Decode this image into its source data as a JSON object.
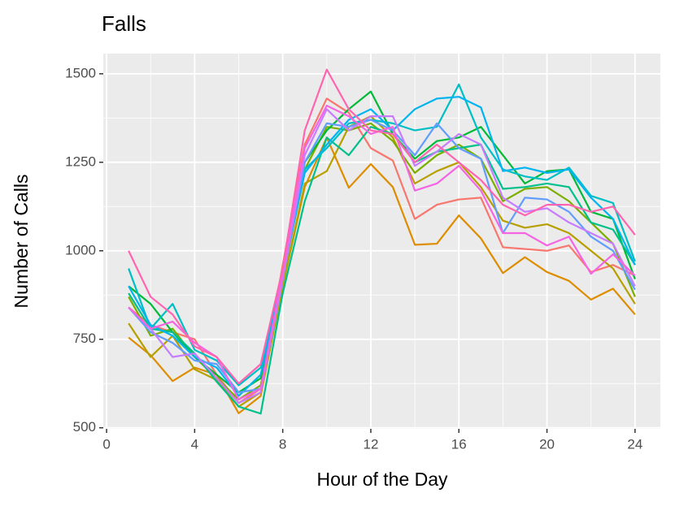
{
  "chart_data": {
    "type": "line",
    "title": "Falls",
    "x_label": "Hour of the Day",
    "y_label": "Number of Calls",
    "x": [
      1,
      2,
      3,
      4,
      5,
      6,
      7,
      8,
      9,
      10,
      11,
      12,
      13,
      14,
      15,
      16,
      17,
      18,
      19,
      20,
      21,
      22,
      23,
      24
    ],
    "xlim": [
      -0.15,
      25.15
    ],
    "xticks": [
      0,
      4,
      8,
      12,
      16,
      20,
      24
    ],
    "ylim": [
      497,
      1557
    ],
    "yticks": [
      500,
      750,
      1000,
      1250,
      1500
    ],
    "grid": true,
    "series": [
      {
        "color": "#F8766D",
        "values": [
          840,
          790,
          770,
          750,
          650,
          570,
          610,
          960,
          1300,
          1430,
          1390,
          1290,
          1255,
          1090,
          1130,
          1145,
          1150,
          1010,
          1005,
          1000,
          1015,
          940,
          960,
          930
        ]
      },
      {
        "color": "#DE8C00",
        "values": [
          755,
          705,
          632,
          670,
          650,
          541,
          590,
          900,
          1180,
          1320,
          1178,
          1245,
          1180,
          1017,
          1020,
          1100,
          1035,
          937,
          982,
          940,
          915,
          862,
          893,
          820
        ]
      },
      {
        "color": "#B79F00",
        "values": [
          795,
          700,
          760,
          665,
          635,
          560,
          600,
          900,
          1190,
          1225,
          1350,
          1380,
          1320,
          1190,
          1225,
          1250,
          1180,
          1085,
          1065,
          1075,
          1050,
          1000,
          950,
          850
        ]
      },
      {
        "color": "#7CAE00",
        "values": [
          870,
          760,
          780,
          700,
          640,
          580,
          620,
          920,
          1230,
          1350,
          1340,
          1360,
          1310,
          1220,
          1270,
          1300,
          1260,
          1140,
          1175,
          1180,
          1140,
          1080,
          1020,
          870
        ]
      },
      {
        "color": "#00BA38",
        "values": [
          900,
          850,
          770,
          700,
          650,
          600,
          640,
          930,
          1250,
          1340,
          1400,
          1450,
          1330,
          1260,
          1310,
          1320,
          1350,
          1270,
          1190,
          1225,
          1230,
          1110,
          1090,
          920
        ]
      },
      {
        "color": "#00C08B",
        "values": [
          880,
          780,
          770,
          710,
          630,
          560,
          540,
          880,
          1140,
          1320,
          1270,
          1350,
          1330,
          1250,
          1280,
          1290,
          1300,
          1175,
          1180,
          1190,
          1180,
          1080,
          1060,
          960
        ]
      },
      {
        "color": "#00BFC4",
        "values": [
          950,
          780,
          850,
          720,
          690,
          620,
          670,
          940,
          1230,
          1290,
          1360,
          1370,
          1360,
          1340,
          1350,
          1470,
          1320,
          1230,
          1210,
          1200,
          1235,
          1155,
          1135,
          970
        ]
      },
      {
        "color": "#00B4F0",
        "values": [
          900,
          790,
          760,
          700,
          670,
          590,
          650,
          930,
          1220,
          1300,
          1370,
          1400,
          1340,
          1400,
          1430,
          1435,
          1405,
          1225,
          1235,
          1220,
          1230,
          1150,
          1090,
          960
        ]
      },
      {
        "color": "#619CFF",
        "values": [
          840,
          770,
          740,
          690,
          680,
          600,
          610,
          920,
          1250,
          1360,
          1350,
          1370,
          1340,
          1270,
          1360,
          1290,
          1260,
          1050,
          1150,
          1145,
          1110,
          1040,
          1000,
          890
        ]
      },
      {
        "color": "#C77CFF",
        "values": [
          840,
          780,
          700,
          710,
          640,
          570,
          600,
          920,
          1270,
          1400,
          1340,
          1380,
          1380,
          1240,
          1280,
          1330,
          1300,
          1150,
          1110,
          1120,
          1080,
          1050,
          1020,
          900
        ]
      },
      {
        "color": "#F564E3",
        "values": [
          840,
          780,
          800,
          740,
          700,
          580,
          610,
          940,
          1290,
          1410,
          1380,
          1330,
          1350,
          1170,
          1190,
          1240,
          1170,
          1050,
          1050,
          1015,
          1040,
          935,
          990,
          930
        ]
      },
      {
        "color": "#FF64B0",
        "values": [
          1000,
          870,
          820,
          730,
          700,
          625,
          680,
          950,
          1340,
          1512,
          1400,
          1340,
          1330,
          1250,
          1300,
          1250,
          1200,
          1130,
          1100,
          1130,
          1130,
          1110,
          1125,
          1045
        ]
      }
    ]
  }
}
